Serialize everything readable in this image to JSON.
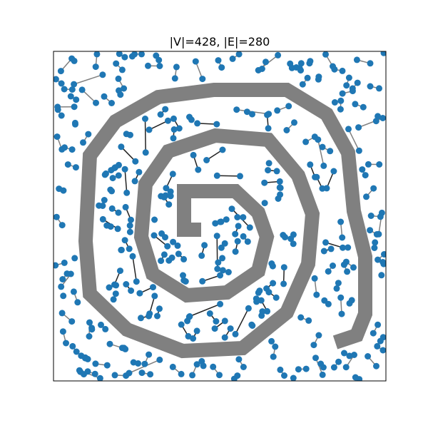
{
  "figure": {
    "title": "|V|=428, |E|=280",
    "colors": {
      "node": "#1f77b4",
      "edge_inner": "#222222",
      "edge_outer": "#7f7f7f",
      "obstacle": "#808080",
      "frame": "#000000",
      "background": "#ffffff"
    },
    "counts": {
      "vertices": 428,
      "edges": 280
    },
    "obstacle_shape": "spiral",
    "axes_ticks": false
  }
}
